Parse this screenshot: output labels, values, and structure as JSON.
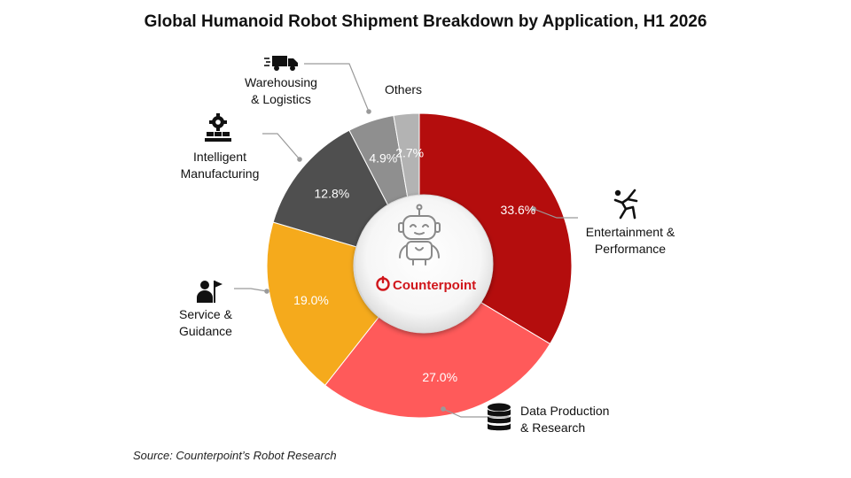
{
  "chart_data": {
    "type": "pie",
    "title": "Global Humanoid Robot Shipment Breakdown by Application, H1 2026",
    "categories": [
      "Entertainment & Performance",
      "Data Production & Research",
      "Service & Guidance",
      "Intelligent Manufacturing",
      "Warehousing & Logistics",
      "Others"
    ],
    "values": [
      33.6,
      27.0,
      19.0,
      12.8,
      4.9,
      2.7
    ],
    "value_labels": [
      "33.6%",
      "27.0%",
      "19.0%",
      "12.8%",
      "4.9%",
      "2.7%"
    ],
    "colors": [
      "#b40d0d",
      "#ff5a5a",
      "#f5aa1c",
      "#4f4f4f",
      "#8f8f8f",
      "#b3b3b3"
    ],
    "donut": true,
    "center_logo": "Counterpoint"
  },
  "labels": {
    "entertainment_line1": "Entertainment &",
    "entertainment_line2": "Performance",
    "data_line1": "Data Production",
    "data_line2": "& Research",
    "service_line1": "Service &",
    "service_line2": "Guidance",
    "manufacturing_line1": "Intelligent",
    "manufacturing_line2": "Manufacturing",
    "warehousing_line1": "Warehousing",
    "warehousing_line2": "& Logistics",
    "others": "Others"
  },
  "source": "Source: Counterpoint’s Robot Research",
  "icons": [
    "truck-icon",
    "factory-gear-icon",
    "dancer-icon",
    "person-flag-icon",
    "database-icon",
    "robot-icon",
    "counterpoint-logo-icon"
  ]
}
